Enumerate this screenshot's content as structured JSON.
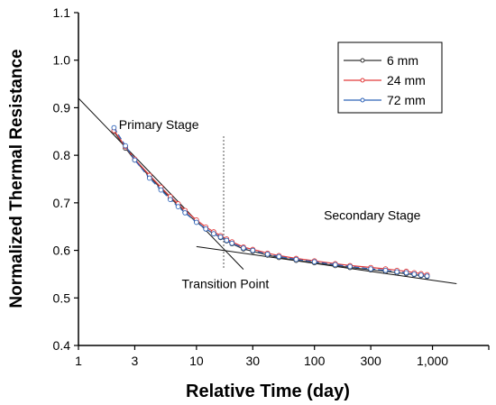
{
  "chart_data": {
    "type": "scatter",
    "xscale": "log",
    "xlim": [
      1,
      3000
    ],
    "ylim": [
      0.4,
      1.1
    ],
    "xlabel": "Relative Time (day)",
    "ylabel": "Normalized Thermal Resistance",
    "xticks": [
      {
        "value": 1,
        "label": "1"
      },
      {
        "value": 3,
        "label": "3"
      },
      {
        "value": 10,
        "label": "10"
      },
      {
        "value": 30,
        "label": "30"
      },
      {
        "value": 100,
        "label": "100"
      },
      {
        "value": 300,
        "label": "300"
      },
      {
        "value": 1000,
        "label": "1,000"
      }
    ],
    "yticks": [
      {
        "value": 0.4,
        "label": "0.4"
      },
      {
        "value": 0.5,
        "label": "0.5"
      },
      {
        "value": 0.6,
        "label": "0.6"
      },
      {
        "value": 0.7,
        "label": "0.7"
      },
      {
        "value": 0.8,
        "label": "0.8"
      },
      {
        "value": 0.9,
        "label": "0.9"
      },
      {
        "value": 1.0,
        "label": "1.0"
      },
      {
        "value": 1.1,
        "label": "1.1"
      }
    ],
    "legend_position": "top-right",
    "series": [
      {
        "name": "6 mm",
        "color": "#333333",
        "x": [
          2,
          2.5,
          3,
          4,
          5,
          6,
          7,
          8,
          10,
          12,
          14,
          16,
          18,
          20,
          25,
          30,
          40,
          50,
          70,
          100,
          150,
          200,
          300,
          400,
          500,
          600,
          700,
          800,
          900
        ],
        "y": [
          0.85,
          0.815,
          0.79,
          0.755,
          0.73,
          0.71,
          0.695,
          0.68,
          0.66,
          0.645,
          0.635,
          0.627,
          0.62,
          0.614,
          0.603,
          0.598,
          0.59,
          0.585,
          0.579,
          0.574,
          0.568,
          0.564,
          0.559,
          0.556,
          0.553,
          0.551,
          0.549,
          0.547,
          0.545
        ]
      },
      {
        "name": "24 mm",
        "color": "#e23a3a",
        "x": [
          2,
          2.5,
          3,
          4,
          5,
          6,
          7,
          8,
          10,
          12,
          14,
          16,
          18,
          20,
          25,
          30,
          40,
          50,
          70,
          100,
          150,
          200,
          300,
          400,
          500,
          600,
          700,
          800,
          900
        ],
        "y": [
          0.852,
          0.818,
          0.792,
          0.758,
          0.733,
          0.713,
          0.698,
          0.684,
          0.664,
          0.649,
          0.639,
          0.631,
          0.624,
          0.618,
          0.607,
          0.602,
          0.594,
          0.589,
          0.583,
          0.578,
          0.572,
          0.568,
          0.564,
          0.561,
          0.558,
          0.556,
          0.553,
          0.551,
          0.549
        ]
      },
      {
        "name": "72 mm",
        "color": "#2e63b8",
        "x": [
          2,
          2.5,
          3,
          4,
          5,
          6,
          7,
          8,
          10,
          12,
          14,
          16,
          18,
          20,
          25,
          30,
          40,
          50,
          70,
          100,
          150,
          200,
          300,
          400,
          500,
          600,
          700,
          800,
          900
        ],
        "y": [
          0.858,
          0.82,
          0.79,
          0.752,
          0.727,
          0.707,
          0.692,
          0.679,
          0.659,
          0.645,
          0.635,
          0.628,
          0.621,
          0.615,
          0.605,
          0.6,
          0.592,
          0.587,
          0.581,
          0.576,
          0.57,
          0.566,
          0.561,
          0.558,
          0.555,
          0.553,
          0.55,
          0.548,
          0.546
        ]
      }
    ],
    "fit_lines": [
      {
        "x": [
          1,
          25
        ],
        "y": [
          0.92,
          0.56
        ]
      },
      {
        "x": [
          10,
          1600
        ],
        "y": [
          0.608,
          0.53
        ]
      }
    ],
    "transition_x": 17,
    "transition_y_range": [
      0.56,
      0.84
    ],
    "annotations": [
      {
        "text": "Primary Stage",
        "x": 2.2,
        "y": 0.855
      },
      {
        "text": "Secondary Stage",
        "x": 120,
        "y": 0.665
      },
      {
        "text": "Transition Point",
        "x": 7.5,
        "y": 0.52
      }
    ]
  }
}
